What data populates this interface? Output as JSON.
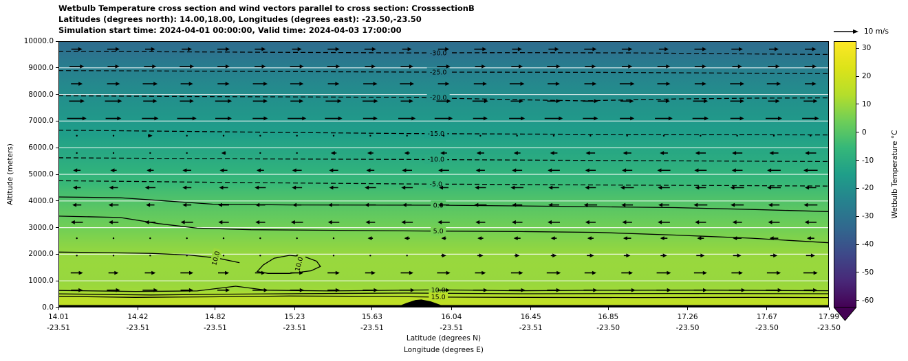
{
  "title": {
    "line1": "Wetbulb Temperature cross section and wind vectors parallel to cross section: CrosssectionB",
    "line2": "Latitudes (degrees north): 14.00,18.00, Longitudes (degrees east): -23.50,-23.50",
    "line3": "Simulation start time: 2024-04-01 00:00:00, Valid time: 2024-04-03 17:00:00"
  },
  "chart_data": {
    "type": "heatmap",
    "subtype": "filled-contour cross-section with wind quiver overlay",
    "xlabel_line1": "Latitude (degrees N)",
    "xlabel_line2": "Longitude (degrees E)",
    "ylabel": "Altitude (meters)",
    "x_range": [
      14.01,
      17.99
    ],
    "y_range": [
      0,
      10000
    ],
    "x_ticks": [
      {
        "lat": "14.01",
        "lon": "-23.51"
      },
      {
        "lat": "14.42",
        "lon": "-23.51"
      },
      {
        "lat": "14.82",
        "lon": "-23.51"
      },
      {
        "lat": "15.23",
        "lon": "-23.51"
      },
      {
        "lat": "15.63",
        "lon": "-23.51"
      },
      {
        "lat": "16.04",
        "lon": "-23.51"
      },
      {
        "lat": "16.45",
        "lon": "-23.51"
      },
      {
        "lat": "16.85",
        "lon": "-23.50"
      },
      {
        "lat": "17.26",
        "lon": "-23.50"
      },
      {
        "lat": "17.67",
        "lon": "-23.50"
      },
      {
        "lat": "17.99",
        "lon": "-23.50"
      }
    ],
    "y_ticks": [
      "0.0",
      "1000.0",
      "2000.0",
      "3000.0",
      "4000.0",
      "5000.0",
      "6000.0",
      "7000.0",
      "8000.0",
      "9000.0",
      "10000.0"
    ],
    "gridlines_alt": [
      1000,
      2000,
      3000,
      4000,
      5000,
      6000,
      7000,
      8000,
      9000
    ],
    "colorbar": {
      "label": "Wetbulb Temperature °C",
      "ticks": [
        "30",
        "20",
        "10",
        "0",
        "-10",
        "-20",
        "-30",
        "-40",
        "-50",
        "-60"
      ],
      "tick_values": [
        30,
        20,
        10,
        0,
        -10,
        -20,
        -30,
        -40,
        -50,
        -60
      ],
      "vmin": -62.5,
      "vmax": 32.5,
      "colormap": "viridis",
      "extend": "min",
      "viridis_stops": [
        "#440154",
        "#482878",
        "#3e4989",
        "#31688e",
        "#26828e",
        "#1f9e89",
        "#35b779",
        "#6ece58",
        "#b5de2b",
        "#dce319",
        "#fde725"
      ]
    },
    "quiver_key": {
      "label": "10 m/s",
      "speed_m_s": 10
    },
    "wetbulb_profile": [
      [
        0,
        17
      ],
      [
        400,
        15
      ],
      [
        650,
        10.5
      ],
      [
        1000,
        9.5
      ],
      [
        1600,
        9.8
      ],
      [
        2000,
        9.3
      ],
      [
        2400,
        7.5
      ],
      [
        2870,
        5
      ],
      [
        3300,
        2.8
      ],
      [
        3850,
        0
      ],
      [
        4300,
        -2.5
      ],
      [
        4640,
        -5
      ],
      [
        5100,
        -7.5
      ],
      [
        5560,
        -10
      ],
      [
        6000,
        -12
      ],
      [
        6530,
        -15
      ],
      [
        7200,
        -17.5
      ],
      [
        7900,
        -20
      ],
      [
        8400,
        -22.5
      ],
      [
        8850,
        -25
      ],
      [
        9200,
        -27.5
      ],
      [
        9560,
        -30
      ],
      [
        10000,
        -32.5
      ]
    ],
    "contours": [
      {
        "value": -30,
        "label": "-30.0",
        "style": "dashed",
        "label_x": 0.493,
        "label_alt": 9560,
        "points": [
          [
            0,
            9620
          ],
          [
            0.15,
            9600
          ],
          [
            0.3,
            9580
          ],
          [
            0.455,
            9560
          ],
          [
            0.6,
            9570
          ],
          [
            0.75,
            9560
          ],
          [
            0.9,
            9520
          ],
          [
            1,
            9500
          ]
        ]
      },
      {
        "value": -25,
        "label": "-25.0",
        "style": "dashed",
        "label_x": 0.493,
        "label_alt": 8840,
        "points": [
          [
            0,
            8900
          ],
          [
            0.2,
            8870
          ],
          [
            0.455,
            8840
          ],
          [
            0.7,
            8830
          ],
          [
            1,
            8780
          ]
        ]
      },
      {
        "value": -20,
        "label": "-20.0",
        "style": "dashed",
        "label_x": 0.493,
        "label_alt": 7890,
        "points": [
          [
            0,
            7950
          ],
          [
            0.2,
            7920
          ],
          [
            0.455,
            7890
          ],
          [
            0.6,
            7800
          ],
          [
            0.68,
            7760
          ],
          [
            0.8,
            7830
          ],
          [
            0.9,
            7860
          ],
          [
            1,
            7870
          ]
        ]
      },
      {
        "value": -15,
        "label": "-15.0",
        "style": "dashed",
        "label_x": 0.49,
        "label_alt": 6530,
        "points": [
          [
            0,
            6660
          ],
          [
            0.2,
            6600
          ],
          [
            0.45,
            6530
          ],
          [
            0.7,
            6500
          ],
          [
            1,
            6480
          ]
        ]
      },
      {
        "value": -10,
        "label": "-10.0",
        "style": "dashed",
        "label_x": 0.49,
        "label_alt": 5560,
        "points": [
          [
            0,
            5620
          ],
          [
            0.25,
            5580
          ],
          [
            0.45,
            5560
          ],
          [
            0.7,
            5520
          ],
          [
            1,
            5480
          ]
        ]
      },
      {
        "value": -5,
        "label": "-5.0",
        "style": "dashed",
        "label_x": 0.49,
        "label_alt": 4640,
        "points": [
          [
            0,
            4760
          ],
          [
            0.2,
            4700
          ],
          [
            0.45,
            4640
          ],
          [
            0.7,
            4600
          ],
          [
            1,
            4560
          ]
        ]
      },
      {
        "value": 0,
        "label": "0.0",
        "style": "solid",
        "label_x": 0.493,
        "label_alt": 3840,
        "points": [
          [
            0,
            4150
          ],
          [
            0.08,
            4120
          ],
          [
            0.14,
            4000
          ],
          [
            0.2,
            3880
          ],
          [
            0.3,
            3850
          ],
          [
            0.49,
            3840
          ],
          [
            0.65,
            3800
          ],
          [
            0.8,
            3750
          ],
          [
            0.9,
            3680
          ],
          [
            1,
            3600
          ]
        ]
      },
      {
        "value": 5,
        "label": "5.0",
        "style": "solid",
        "label_x": 0.493,
        "label_alt": 2865,
        "points": [
          [
            0,
            3430
          ],
          [
            0.08,
            3380
          ],
          [
            0.13,
            3150
          ],
          [
            0.18,
            2980
          ],
          [
            0.25,
            2920
          ],
          [
            0.35,
            2900
          ],
          [
            0.475,
            2870
          ],
          [
            0.6,
            2850
          ],
          [
            0.7,
            2820
          ],
          [
            0.8,
            2720
          ],
          [
            0.9,
            2600
          ],
          [
            1,
            2430
          ]
        ]
      },
      {
        "value": 10,
        "label": "10.0",
        "style": "solid",
        "label_x": 0.204,
        "label_alt": 1850,
        "label_rotate": -75,
        "points": [
          [
            0,
            2080
          ],
          [
            0.06,
            2060
          ],
          [
            0.12,
            2030
          ],
          [
            0.17,
            1970
          ],
          [
            0.207,
            1850
          ],
          [
            0.235,
            1680
          ]
        ]
      },
      {
        "value": 10,
        "label": "10.0",
        "style": "solid",
        "label_x": 0.312,
        "label_alt": 1630,
        "label_rotate": -75,
        "closed": true,
        "points": [
          [
            0.258,
            1350
          ],
          [
            0.266,
            1600
          ],
          [
            0.28,
            1850
          ],
          [
            0.3,
            1960
          ],
          [
            0.32,
            1900
          ],
          [
            0.335,
            1740
          ],
          [
            0.34,
            1540
          ],
          [
            0.328,
            1380
          ],
          [
            0.3,
            1280
          ],
          [
            0.272,
            1280
          ],
          [
            0.258,
            1350
          ]
        ]
      },
      {
        "value": 10,
        "label": "10.0",
        "style": "solid",
        "label_x": 0.493,
        "label_alt": 655,
        "points": [
          [
            0,
            640
          ],
          [
            0.1,
            600
          ],
          [
            0.18,
            620
          ],
          [
            0.23,
            800
          ],
          [
            0.27,
            650
          ],
          [
            0.35,
            620
          ],
          [
            0.49,
            660
          ],
          [
            0.6,
            630
          ],
          [
            0.7,
            645
          ],
          [
            0.85,
            650
          ],
          [
            1,
            630
          ]
        ]
      },
      {
        "value": 10,
        "label": "",
        "style": "solid",
        "points": [
          [
            0,
            510
          ],
          [
            0.12,
            470
          ],
          [
            0.22,
            500
          ],
          [
            0.32,
            520
          ],
          [
            0.45,
            540
          ],
          [
            0.6,
            515
          ],
          [
            0.8,
            525
          ],
          [
            1,
            515
          ]
        ]
      },
      {
        "value": 15,
        "label": "15.0",
        "style": "solid",
        "label_x": 0.493,
        "label_alt": 395,
        "points": [
          [
            0,
            420
          ],
          [
            0.1,
            380
          ],
          [
            0.2,
            400
          ],
          [
            0.3,
            430
          ],
          [
            0.42,
            415
          ],
          [
            0.49,
            390
          ],
          [
            0.6,
            380
          ],
          [
            0.75,
            370
          ],
          [
            0.9,
            380
          ],
          [
            1,
            370
          ]
        ]
      }
    ],
    "wind_rows": [
      {
        "alt": 9700,
        "uL": 5,
        "uR": 5
      },
      {
        "alt": 9050,
        "uL": 6,
        "uR": 5
      },
      {
        "alt": 8400,
        "uL": 6,
        "uR": 6
      },
      {
        "alt": 7750,
        "uL": 7,
        "uR": 6
      },
      {
        "alt": 7100,
        "uL": 8,
        "uR": 7
      },
      {
        "alt": 6450,
        "uL": 2,
        "uR": 0.5
      },
      {
        "alt": 5800,
        "uL": -1,
        "uR": -5
      },
      {
        "alt": 5150,
        "uL": -3,
        "uR": -6
      },
      {
        "alt": 4500,
        "uL": -4,
        "uR": -6
      },
      {
        "alt": 3850,
        "uL": -4,
        "uR": -6
      },
      {
        "alt": 3200,
        "uL": -5,
        "uR": -5
      },
      {
        "alt": 2600,
        "uL": -1,
        "uR": -4
      },
      {
        "alt": 1950,
        "uL": 0.5,
        "uR": 4
      },
      {
        "alt": 1300,
        "uL": 5,
        "uR": 6
      },
      {
        "alt": 650,
        "uL": 6,
        "uR": 7
      }
    ],
    "wind_columns": 21,
    "terrain": {
      "bump_center_x": 0.47,
      "bump_half_width": 0.033,
      "bump_peak_alt": 300,
      "base_strip_alt": 90
    }
  }
}
